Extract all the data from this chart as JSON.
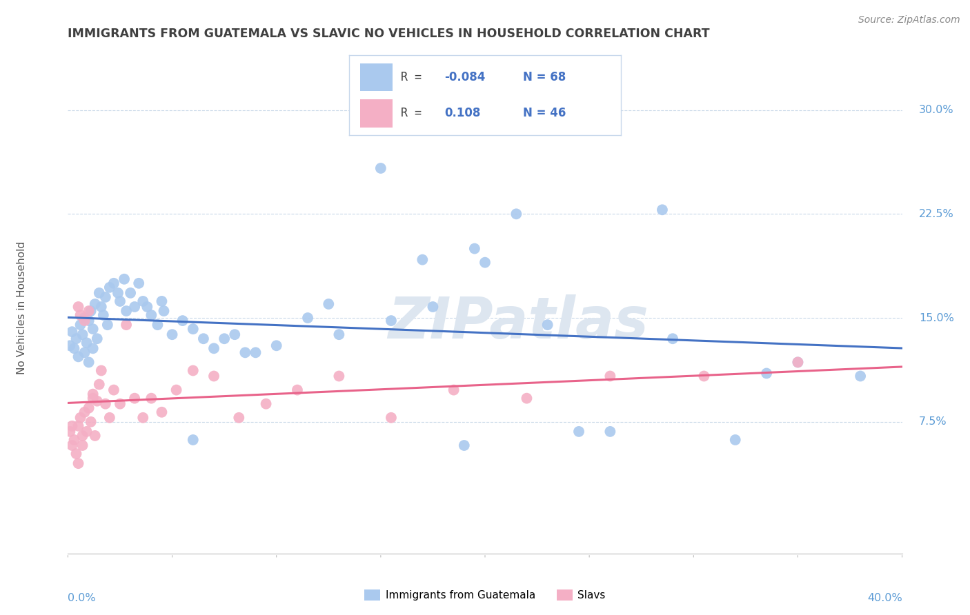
{
  "title": "IMMIGRANTS FROM GUATEMALA VS SLAVIC NO VEHICLES IN HOUSEHOLD CORRELATION CHART",
  "source": "Source: ZipAtlas.com",
  "ylabel": "No Vehicles in Household",
  "yticks": [
    "7.5%",
    "15.0%",
    "22.5%",
    "30.0%"
  ],
  "ytick_vals": [
    0.075,
    0.15,
    0.225,
    0.3
  ],
  "xlim": [
    0.0,
    0.4
  ],
  "ylim": [
    -0.02,
    0.335
  ],
  "blue_color": "#aac9ee",
  "pink_color": "#f4afc5",
  "blue_line_color": "#4472c4",
  "pink_line_color": "#e8638a",
  "title_color": "#404040",
  "axis_label_color": "#5b9bd5",
  "watermark": "ZIPatlas",
  "legend_label1": "Immigrants from Guatemala",
  "legend_label2": "Slavs",
  "blue_scatter_x": [
    0.001,
    0.002,
    0.003,
    0.004,
    0.005,
    0.006,
    0.007,
    0.008,
    0.008,
    0.009,
    0.01,
    0.01,
    0.011,
    0.012,
    0.012,
    0.013,
    0.014,
    0.015,
    0.016,
    0.017,
    0.018,
    0.019,
    0.02,
    0.022,
    0.024,
    0.025,
    0.027,
    0.028,
    0.03,
    0.032,
    0.034,
    0.036,
    0.038,
    0.04,
    0.043,
    0.046,
    0.05,
    0.055,
    0.06,
    0.065,
    0.07,
    0.08,
    0.09,
    0.1,
    0.115,
    0.13,
    0.15,
    0.17,
    0.2,
    0.23,
    0.26,
    0.29,
    0.32,
    0.35,
    0.195,
    0.245,
    0.125,
    0.155,
    0.285,
    0.335,
    0.215,
    0.175,
    0.38,
    0.075,
    0.085,
    0.045,
    0.19,
    0.06
  ],
  "blue_scatter_y": [
    0.13,
    0.14,
    0.128,
    0.135,
    0.122,
    0.145,
    0.138,
    0.15,
    0.125,
    0.132,
    0.148,
    0.118,
    0.155,
    0.128,
    0.142,
    0.16,
    0.135,
    0.168,
    0.158,
    0.152,
    0.165,
    0.145,
    0.172,
    0.175,
    0.168,
    0.162,
    0.178,
    0.155,
    0.168,
    0.158,
    0.175,
    0.162,
    0.158,
    0.152,
    0.145,
    0.155,
    0.138,
    0.148,
    0.142,
    0.135,
    0.128,
    0.138,
    0.125,
    0.13,
    0.15,
    0.138,
    0.258,
    0.192,
    0.19,
    0.145,
    0.068,
    0.135,
    0.062,
    0.118,
    0.2,
    0.068,
    0.16,
    0.148,
    0.228,
    0.11,
    0.225,
    0.158,
    0.108,
    0.135,
    0.125,
    0.162,
    0.058,
    0.062
  ],
  "pink_scatter_x": [
    0.001,
    0.002,
    0.002,
    0.003,
    0.004,
    0.005,
    0.005,
    0.006,
    0.007,
    0.007,
    0.008,
    0.009,
    0.01,
    0.011,
    0.012,
    0.013,
    0.014,
    0.015,
    0.016,
    0.018,
    0.02,
    0.022,
    0.025,
    0.028,
    0.032,
    0.036,
    0.04,
    0.045,
    0.052,
    0.06,
    0.07,
    0.082,
    0.095,
    0.11,
    0.13,
    0.155,
    0.185,
    0.22,
    0.26,
    0.305,
    0.35,
    0.005,
    0.006,
    0.008,
    0.01,
    0.012
  ],
  "pink_scatter_y": [
    0.068,
    0.058,
    0.072,
    0.062,
    0.052,
    0.072,
    0.045,
    0.078,
    0.065,
    0.058,
    0.082,
    0.068,
    0.085,
    0.075,
    0.095,
    0.065,
    0.09,
    0.102,
    0.112,
    0.088,
    0.078,
    0.098,
    0.088,
    0.145,
    0.092,
    0.078,
    0.092,
    0.082,
    0.098,
    0.112,
    0.108,
    0.078,
    0.088,
    0.098,
    0.108,
    0.078,
    0.098,
    0.092,
    0.108,
    0.108,
    0.118,
    0.158,
    0.152,
    0.148,
    0.155,
    0.092
  ]
}
